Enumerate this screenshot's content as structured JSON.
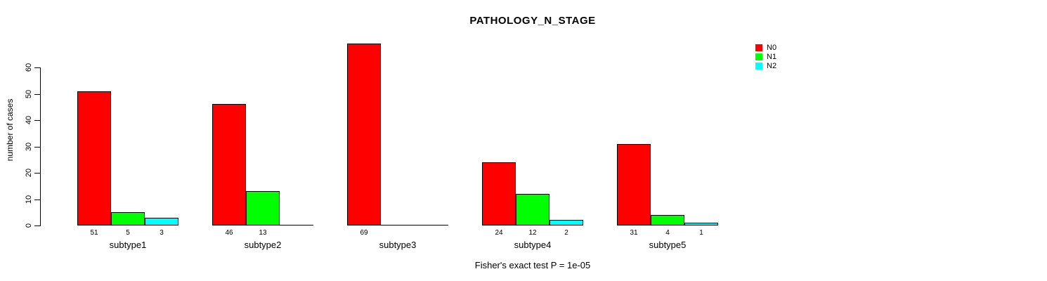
{
  "chart_data": {
    "type": "bar",
    "title": "PATHOLOGY_N_STAGE",
    "ylabel": "number of cases",
    "xlabel": "",
    "categories": [
      "subtype1",
      "subtype2",
      "subtype3",
      "subtype4",
      "subtype5"
    ],
    "series": [
      {
        "name": "N0",
        "color": "#ff0000",
        "values": [
          51,
          46,
          69,
          24,
          31
        ]
      },
      {
        "name": "N1",
        "color": "#00ff00",
        "values": [
          5,
          13,
          0,
          12,
          4
        ]
      },
      {
        "name": "N2",
        "color": "#00ffff",
        "values": [
          3,
          0,
          0,
          2,
          1
        ]
      }
    ],
    "ylim": [
      0,
      60
    ],
    "yticks": [
      0,
      10,
      20,
      30,
      40,
      50,
      60
    ],
    "grid": false,
    "legend_position": "right",
    "bar_value_labels_shown_for_nonzero_only": true,
    "annotation": "Fisher's exact test P = 1e-05"
  },
  "colors": {
    "background": "#ffffff",
    "axis": "#000000",
    "text": "#000000"
  }
}
